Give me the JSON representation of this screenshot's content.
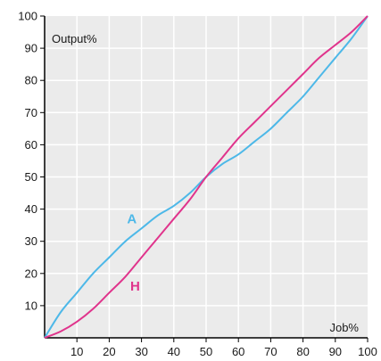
{
  "chart_data": {
    "type": "line",
    "xlabel": "Job%",
    "ylabel": "Output%",
    "xlim": [
      0,
      100
    ],
    "ylim": [
      0,
      100
    ],
    "x_ticks": [
      10,
      20,
      30,
      40,
      50,
      60,
      70,
      80,
      90,
      100
    ],
    "y_ticks": [
      10,
      20,
      30,
      40,
      50,
      60,
      70,
      80,
      90,
      100
    ],
    "grid": true,
    "background": "#ebebeb",
    "grid_color": "#ffffff",
    "x": [
      0,
      5,
      10,
      15,
      20,
      25,
      30,
      35,
      40,
      45,
      50,
      55,
      60,
      65,
      70,
      75,
      80,
      85,
      90,
      95,
      100
    ],
    "series": [
      {
        "name": "A",
        "color": "#4db8e8",
        "values": [
          0,
          8,
          14,
          20,
          25,
          30,
          34,
          38,
          41,
          45,
          50,
          54,
          57,
          61,
          65,
          70,
          75,
          81,
          87,
          93,
          100
        ]
      },
      {
        "name": "H",
        "color": "#e0348c",
        "values": [
          0,
          2,
          5,
          9,
          14,
          19,
          25,
          31,
          37,
          43,
          50,
          56,
          62,
          67,
          72,
          77,
          82,
          87,
          91,
          95,
          100
        ]
      }
    ],
    "annotations": [
      {
        "text": "A",
        "x": 27,
        "y": 37,
        "color": "#4db8e8"
      },
      {
        "text": "H",
        "x": 28,
        "y": 16,
        "color": "#e0348c"
      }
    ]
  }
}
